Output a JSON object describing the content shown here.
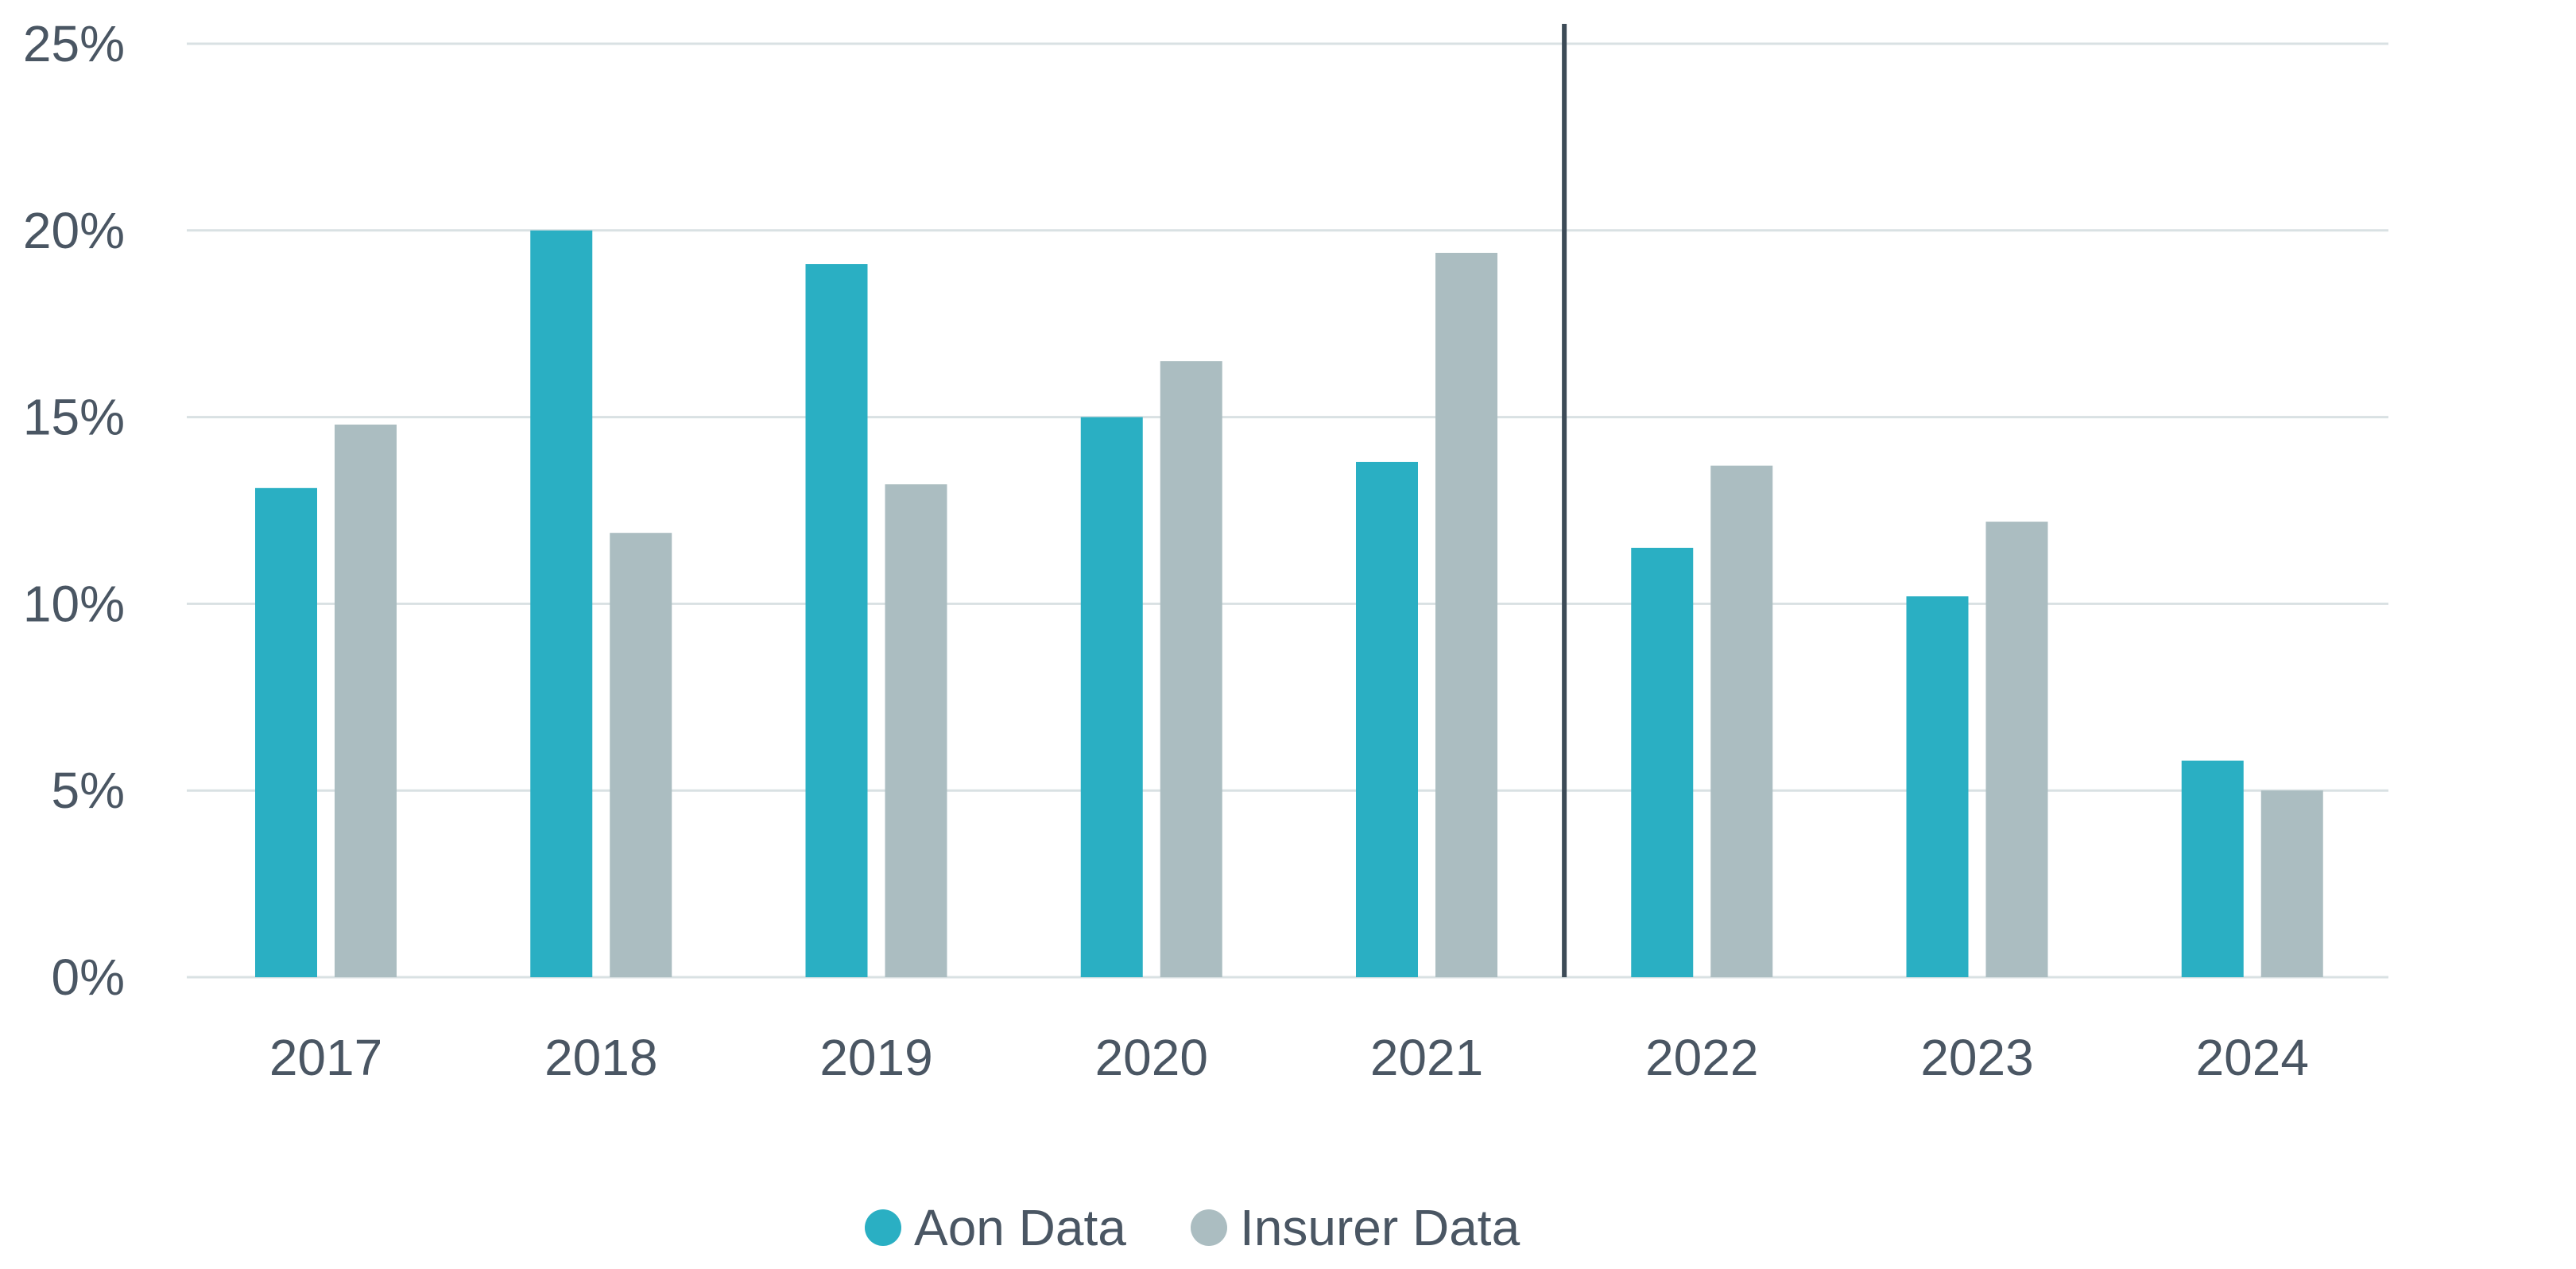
{
  "chart_data": {
    "type": "bar",
    "title": "",
    "xlabel": "",
    "ylabel": "",
    "categories": [
      "2017",
      "2018",
      "2019",
      "2020",
      "2021",
      "2022",
      "2023",
      "2024"
    ],
    "series": [
      {
        "name": "Aon Data",
        "color": "#2aafc3",
        "values": [
          13.1,
          20.0,
          19.1,
          15.0,
          13.8,
          11.5,
          10.2,
          5.8
        ]
      },
      {
        "name": "Insurer Data",
        "color": "#abbdc1",
        "values": [
          14.8,
          11.9,
          13.2,
          16.5,
          19.4,
          13.7,
          12.2,
          5.0
        ]
      }
    ],
    "ylim": [
      0,
      25
    ],
    "yticks": [
      0,
      5,
      10,
      15,
      20,
      25
    ],
    "ytick_labels": [
      "0%",
      "5%",
      "10%",
      "15%",
      "20%",
      "25%"
    ],
    "grid": true,
    "divider_after_category": "2021",
    "legend_position": "bottom-center",
    "colors": {
      "grid": "#d9e1e3",
      "divider": "#3d4b57",
      "text": "#4a5663"
    }
  }
}
